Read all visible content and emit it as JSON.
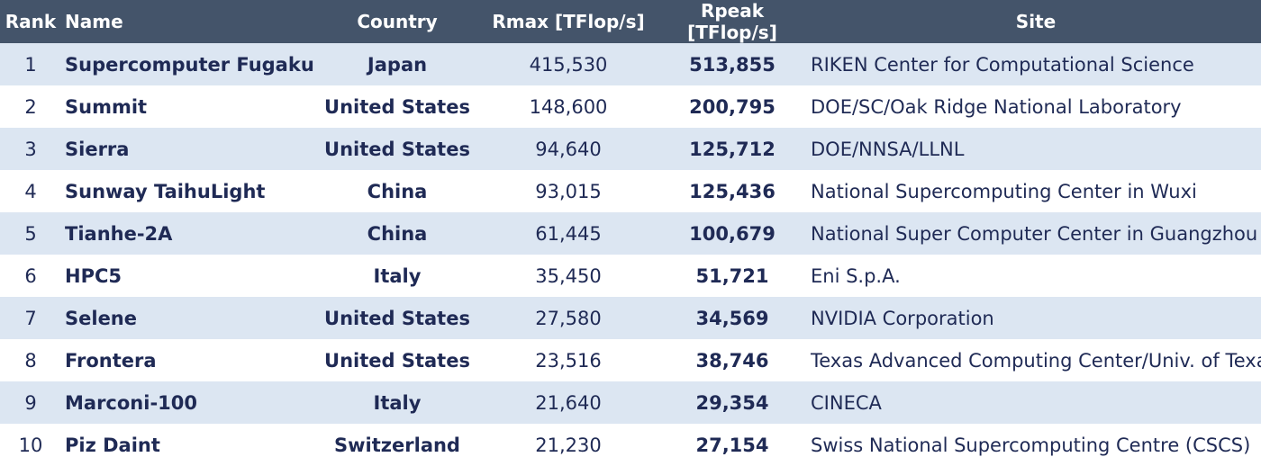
{
  "header": {
    "rank": "Rank",
    "name": "Name",
    "country": "Country",
    "rmax": "Rmax [TFlop/s]",
    "rpeak": "Rpeak [TFlop/s]",
    "site": "Site"
  },
  "rows": [
    {
      "rank": "1",
      "name": "Supercomputer Fugaku",
      "country": "Japan",
      "rmax": "415,530",
      "rpeak": "513,855",
      "site": "RIKEN Center for Computational Science"
    },
    {
      "rank": "2",
      "name": "Summit",
      "country": "United States",
      "rmax": "148,600",
      "rpeak": "200,795",
      "site": "DOE/SC/Oak Ridge National Laboratory"
    },
    {
      "rank": "3",
      "name": "Sierra",
      "country": "United States",
      "rmax": "94,640",
      "rpeak": "125,712",
      "site": "DOE/NNSA/LLNL"
    },
    {
      "rank": "4",
      "name": "Sunway TaihuLight",
      "country": "China",
      "rmax": "93,015",
      "rpeak": "125,436",
      "site": "National Supercomputing Center in Wuxi"
    },
    {
      "rank": "5",
      "name": "Tianhe-2A",
      "country": "China",
      "rmax": "61,445",
      "rpeak": "100,679",
      "site": "National Super Computer Center in Guangzhou"
    },
    {
      "rank": "6",
      "name": "HPC5",
      "country": "Italy",
      "rmax": "35,450",
      "rpeak": "51,721",
      "site": "Eni S.p.A."
    },
    {
      "rank": "7",
      "name": "Selene",
      "country": "United States",
      "rmax": "27,580",
      "rpeak": "34,569",
      "site": "NVIDIA Corporation"
    },
    {
      "rank": "8",
      "name": "Frontera",
      "country": "United States",
      "rmax": "23,516",
      "rpeak": "38,746",
      "site": "Texas Advanced Computing Center/Univ. of Texas"
    },
    {
      "rank": "9",
      "name": "Marconi-100",
      "country": "Italy",
      "rmax": "21,640",
      "rpeak": "29,354",
      "site": "CINECA"
    },
    {
      "rank": "10",
      "name": "Piz Daint",
      "country": "Switzerland",
      "rmax": "21,230",
      "rpeak": "27,154",
      "site": "Swiss National Supercomputing Centre (CSCS)"
    }
  ],
  "colors": {
    "header_bg": "#44546a",
    "header_text": "#ffffff",
    "band_row": "#dce6f2",
    "plain_row": "#ffffff",
    "body_text": "#1f2a55"
  }
}
